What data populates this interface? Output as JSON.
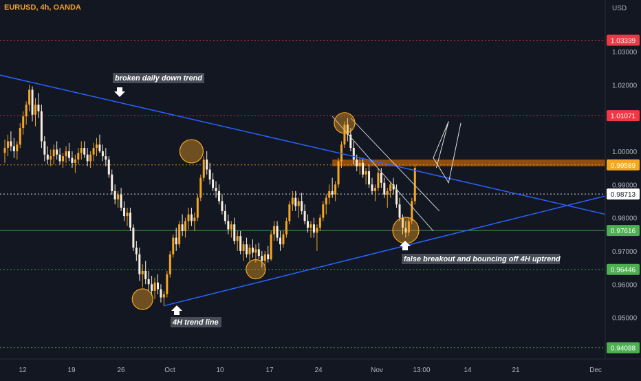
{
  "header": {
    "symbol_line": "EURUSD, 4h, OANDA",
    "currency": "USD"
  },
  "chart_data": {
    "type": "candlestick",
    "timeframe": "4h",
    "symbol": "EURUSD",
    "broker": "OANDA",
    "ylim": [
      0.9375,
      1.0455
    ],
    "y_ticks": [
      0.95,
      0.96,
      0.97,
      0.98,
      0.99,
      1.0,
      1.01,
      1.02,
      1.03
    ],
    "y_tick_labels": [
      "0.95000",
      "0.96000",
      "0.97000",
      "0.98000",
      "0.99000",
      "1.00000",
      "1.01000",
      "1.02000",
      "1.03000"
    ],
    "x_tick_labels": [
      "12",
      "19",
      "26",
      "Oct",
      "10",
      "17",
      "24",
      "Nov",
      "13:00",
      "14",
      "21",
      "Dec"
    ],
    "price_levels": [
      {
        "value": 1.03339,
        "label": "1.03339",
        "color": "#f23645",
        "style": "dotted"
      },
      {
        "value": 1.01071,
        "label": "1.01071",
        "color": "#f23645",
        "style": "dotted"
      },
      {
        "value": 0.99589,
        "label": "0.99589",
        "color": "#f5a623",
        "style": "dotted"
      },
      {
        "value": 0.98713,
        "label": "0.98713",
        "color": "#ffffff",
        "style": "dotted"
      },
      {
        "value": 0.97616,
        "label": "0.97616",
        "color": "#4caf50",
        "style": "solid"
      },
      {
        "value": 0.96446,
        "label": "0.96446",
        "color": "#4caf50",
        "style": "dotted"
      },
      {
        "value": 0.94088,
        "label": "0.94088",
        "color": "#4caf50",
        "style": "dotted"
      }
    ],
    "resistance_zone": [
      0.9955,
      0.9975
    ],
    "annotations": [
      "broken daily down trend",
      "4H trend line",
      "false breakout and bouncing off 4H uptrend"
    ],
    "candles": [
      [
        0.9995,
        1.0035,
        0.9965,
        1.001
      ],
      [
        1.001,
        1.005,
        0.9985,
        1.003
      ],
      [
        1.003,
        1.006,
        1.0,
        1.0015
      ],
      [
        1.0015,
        1.004,
        0.998,
        1.0
      ],
      [
        1.0,
        1.003,
        0.9975,
        1.002
      ],
      [
        1.002,
        1.0085,
        1.001,
        1.007
      ],
      [
        1.007,
        1.012,
        1.005,
        1.0105
      ],
      [
        1.0105,
        1.015,
        1.008,
        1.014
      ],
      [
        1.014,
        1.02,
        1.012,
        1.0185
      ],
      [
        1.0185,
        1.0195,
        1.009,
        1.011
      ],
      [
        1.011,
        1.016,
        1.0075,
        1.014
      ],
      [
        1.014,
        1.0175,
        1.01,
        1.012
      ],
      [
        1.012,
        1.014,
        1.001,
        1.003
      ],
      [
        1.003,
        1.0045,
        0.997,
        0.999
      ],
      [
        0.999,
        1.0015,
        0.996,
        0.9975
      ],
      [
        0.9975,
        1.0005,
        0.9955,
        0.9985
      ],
      [
        0.9985,
        1.002,
        0.996,
        1.0005
      ],
      [
        1.0005,
        1.003,
        0.9975,
        0.999
      ],
      [
        0.999,
        1.001,
        0.996,
        0.997
      ],
      [
        0.997,
        0.9995,
        0.995,
        0.9985
      ],
      [
        0.9985,
        1.0015,
        0.9965,
        1.0
      ],
      [
        1.0,
        1.0025,
        0.997,
        0.998
      ],
      [
        0.998,
        1.0,
        0.995,
        0.9965
      ],
      [
        0.9965,
        0.999,
        0.9935,
        0.9975
      ],
      [
        0.9975,
        1.001,
        0.996,
        0.9995
      ],
      [
        0.9995,
        1.003,
        0.9975,
        1.001
      ],
      [
        1.001,
        1.003,
        0.998,
        0.999
      ],
      [
        0.999,
        1.001,
        0.9955,
        0.997
      ],
      [
        0.997,
        1.0,
        0.995,
        0.999
      ],
      [
        0.999,
        1.0025,
        0.997,
        1.001
      ],
      [
        1.001,
        1.004,
        0.9985,
        1.002
      ],
      [
        1.002,
        1.005,
        0.9995,
        1.0
      ],
      [
        1.0,
        1.002,
        0.997,
        0.9985
      ],
      [
        0.9985,
        1.001,
        0.9955,
        0.9975
      ],
      [
        0.9975,
        0.9985,
        0.992,
        0.993
      ],
      [
        0.993,
        0.9945,
        0.987,
        0.988
      ],
      [
        0.988,
        0.99,
        0.984,
        0.9855
      ],
      [
        0.9855,
        0.988,
        0.983,
        0.987
      ],
      [
        0.987,
        0.989,
        0.982,
        0.983
      ],
      [
        0.983,
        0.985,
        0.979,
        0.9805
      ],
      [
        0.9805,
        0.983,
        0.9775,
        0.9815
      ],
      [
        0.9815,
        0.983,
        0.976,
        0.977
      ],
      [
        0.977,
        0.978,
        0.97,
        0.971
      ],
      [
        0.971,
        0.973,
        0.967,
        0.969
      ],
      [
        0.969,
        0.971,
        0.961,
        0.963
      ],
      [
        0.963,
        0.966,
        0.959,
        0.964
      ],
      [
        0.964,
        0.967,
        0.96,
        0.9615
      ],
      [
        0.9615,
        0.964,
        0.958,
        0.96
      ],
      [
        0.96,
        0.9625,
        0.9565,
        0.958
      ],
      [
        0.958,
        0.962,
        0.9555,
        0.9605
      ],
      [
        0.9605,
        0.963,
        0.957,
        0.9585
      ],
      [
        0.9585,
        0.96,
        0.9545,
        0.956
      ],
      [
        0.956,
        0.958,
        0.9535,
        0.957
      ],
      [
        0.957,
        0.964,
        0.956,
        0.963
      ],
      [
        0.963,
        0.97,
        0.962,
        0.969
      ],
      [
        0.969,
        0.975,
        0.968,
        0.974
      ],
      [
        0.974,
        0.977,
        0.97,
        0.972
      ],
      [
        0.972,
        0.979,
        0.971,
        0.978
      ],
      [
        0.978,
        0.981,
        0.9745,
        0.976
      ],
      [
        0.976,
        0.98,
        0.974,
        0.979
      ],
      [
        0.979,
        0.983,
        0.9765,
        0.981
      ],
      [
        0.981,
        0.983,
        0.9775,
        0.979
      ],
      [
        0.979,
        0.9815,
        0.976,
        0.98
      ],
      [
        0.98,
        0.987,
        0.979,
        0.986
      ],
      [
        0.986,
        0.993,
        0.985,
        0.992
      ],
      [
        0.992,
        0.9985,
        0.991,
        0.9975
      ],
      [
        0.9975,
        1.0,
        0.993,
        0.9945
      ],
      [
        0.9945,
        0.9965,
        0.99,
        0.9915
      ],
      [
        0.9915,
        0.9935,
        0.988,
        0.989
      ],
      [
        0.989,
        0.991,
        0.986,
        0.988
      ],
      [
        0.988,
        0.99,
        0.984,
        0.985
      ],
      [
        0.985,
        0.987,
        0.981,
        0.982
      ],
      [
        0.982,
        0.984,
        0.978,
        0.979
      ],
      [
        0.979,
        0.981,
        0.975,
        0.9765
      ],
      [
        0.9765,
        0.979,
        0.974,
        0.978
      ],
      [
        0.978,
        0.98,
        0.972,
        0.973
      ],
      [
        0.973,
        0.976,
        0.97,
        0.9745
      ],
      [
        0.9745,
        0.976,
        0.969,
        0.97
      ],
      [
        0.97,
        0.973,
        0.967,
        0.972
      ],
      [
        0.972,
        0.974,
        0.968,
        0.969
      ],
      [
        0.969,
        0.972,
        0.967,
        0.971
      ],
      [
        0.971,
        0.9735,
        0.968,
        0.9695
      ],
      [
        0.9695,
        0.972,
        0.9665,
        0.9705
      ],
      [
        0.9705,
        0.9725,
        0.9675,
        0.9685
      ],
      [
        0.9685,
        0.97,
        0.965,
        0.967
      ],
      [
        0.967,
        0.97,
        0.964,
        0.969
      ],
      [
        0.969,
        0.9715,
        0.9665,
        0.9675
      ],
      [
        0.9675,
        0.976,
        0.967,
        0.975
      ],
      [
        0.975,
        0.979,
        0.973,
        0.9775
      ],
      [
        0.9775,
        0.979,
        0.973,
        0.974
      ],
      [
        0.974,
        0.976,
        0.97,
        0.972
      ],
      [
        0.972,
        0.976,
        0.971,
        0.975
      ],
      [
        0.975,
        0.98,
        0.974,
        0.979
      ],
      [
        0.979,
        0.985,
        0.978,
        0.984
      ],
      [
        0.984,
        0.988,
        0.982,
        0.986
      ],
      [
        0.986,
        0.988,
        0.982,
        0.9835
      ],
      [
        0.9835,
        0.986,
        0.98,
        0.985
      ],
      [
        0.985,
        0.9875,
        0.981,
        0.982
      ],
      [
        0.982,
        0.984,
        0.978,
        0.979
      ],
      [
        0.979,
        0.981,
        0.9755,
        0.977
      ],
      [
        0.977,
        0.979,
        0.974,
        0.978
      ],
      [
        0.978,
        0.98,
        0.974,
        0.9755
      ],
      [
        0.9755,
        0.978,
        0.97,
        0.977
      ],
      [
        0.977,
        0.981,
        0.976,
        0.98
      ],
      [
        0.98,
        0.985,
        0.979,
        0.984
      ],
      [
        0.984,
        0.987,
        0.981,
        0.986
      ],
      [
        0.986,
        0.99,
        0.984,
        0.988
      ],
      [
        0.988,
        0.992,
        0.986,
        0.987
      ],
      [
        0.987,
        0.991,
        0.985,
        0.99
      ],
      [
        0.99,
        0.998,
        0.989,
        0.997
      ],
      [
        0.997,
        1.003,
        0.995,
        1.002
      ],
      [
        1.002,
        1.009,
        1.001,
        1.008
      ],
      [
        1.008,
        1.01,
        1.003,
        1.005
      ],
      [
        1.005,
        1.007,
        1.0,
        1.001
      ],
      [
        1.001,
        1.003,
        0.996,
        0.9975
      ],
      [
        0.9975,
        0.999,
        0.994,
        0.9955
      ],
      [
        0.9955,
        0.998,
        0.993,
        0.9965
      ],
      [
        0.9965,
        0.998,
        0.992,
        0.993
      ],
      [
        0.993,
        0.995,
        0.99,
        0.994
      ],
      [
        0.994,
        0.996,
        0.989,
        0.99
      ],
      [
        0.99,
        0.992,
        0.987,
        0.988
      ],
      [
        0.988,
        0.99,
        0.985,
        0.989
      ],
      [
        0.989,
        0.995,
        0.988,
        0.9935
      ],
      [
        0.9935,
        0.995,
        0.989,
        0.9905
      ],
      [
        0.9905,
        0.992,
        0.986,
        0.987
      ],
      [
        0.987,
        0.989,
        0.983,
        0.988
      ],
      [
        0.988,
        0.991,
        0.986,
        0.99
      ],
      [
        0.99,
        0.992,
        0.987,
        0.9885
      ],
      [
        0.9885,
        0.99,
        0.983,
        0.984
      ],
      [
        0.984,
        0.986,
        0.979,
        0.98
      ],
      [
        0.98,
        0.981,
        0.975,
        0.977
      ],
      [
        0.977,
        0.979,
        0.974,
        0.9755
      ],
      [
        0.9755,
        0.98,
        0.9745,
        0.979
      ],
      [
        0.979,
        0.986,
        0.978,
        0.985
      ],
      [
        0.985,
        0.996,
        0.984,
        0.995
      ]
    ]
  },
  "trendlines": [
    {
      "name": "daily-down-trend",
      "color": "#2962ff",
      "from": [
        -2,
        1.023
      ],
      "to": [
        220,
        0.976
      ]
    },
    {
      "name": "4h-up-trend",
      "color": "#2962ff",
      "from": [
        52,
        0.9535
      ],
      "to": [
        220,
        0.992
      ]
    }
  ]
}
